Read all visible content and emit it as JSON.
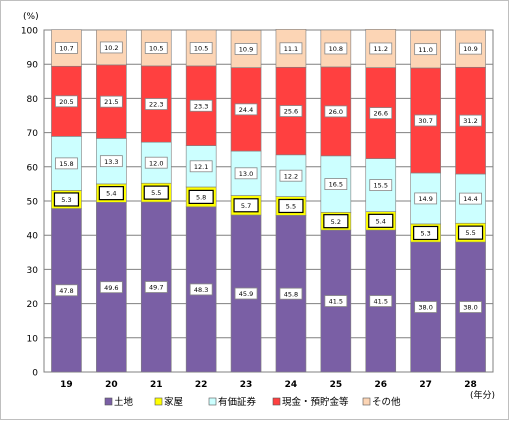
{
  "chart_data": {
    "type": "stacked-bar",
    "y_unit_label": "(%)",
    "x_unit_label": "(年分)",
    "categories": [
      "19",
      "20",
      "21",
      "22",
      "23",
      "24",
      "25",
      "26",
      "27",
      "28"
    ],
    "ylim": [
      0,
      100
    ],
    "yticks": [
      0,
      10,
      20,
      30,
      40,
      50,
      60,
      70,
      80,
      90,
      100
    ],
    "grid": true,
    "legend_position": "bottom",
    "series": [
      {
        "name": "土地",
        "color": "#7a5fa5",
        "label_border": "#888888",
        "values": [
          47.8,
          49.6,
          49.7,
          48.3,
          45.9,
          45.8,
          41.5,
          41.5,
          38.0,
          38.0
        ]
      },
      {
        "name": "家屋",
        "color": "#ffff00",
        "label_border": "#000000",
        "values": [
          5.3,
          5.4,
          5.5,
          5.8,
          5.7,
          5.5,
          5.2,
          5.4,
          5.3,
          5.5
        ]
      },
      {
        "name": "有価証券",
        "color": "#ccffff",
        "label_border": "#888888",
        "values": [
          15.8,
          13.3,
          12.0,
          12.1,
          13.0,
          12.2,
          16.5,
          15.5,
          14.9,
          14.4
        ]
      },
      {
        "name": "現金・預貯金等",
        "color": "#ff4040",
        "label_border": "#888888",
        "values": [
          20.5,
          21.5,
          22.3,
          23.3,
          24.4,
          25.6,
          26.0,
          26.6,
          30.7,
          31.2
        ]
      },
      {
        "name": "その他",
        "color": "#fcd5b5",
        "label_border": "#888888",
        "values": [
          10.7,
          10.2,
          10.5,
          10.5,
          10.9,
          11.1,
          10.8,
          11.2,
          11.0,
          10.9
        ]
      }
    ]
  }
}
